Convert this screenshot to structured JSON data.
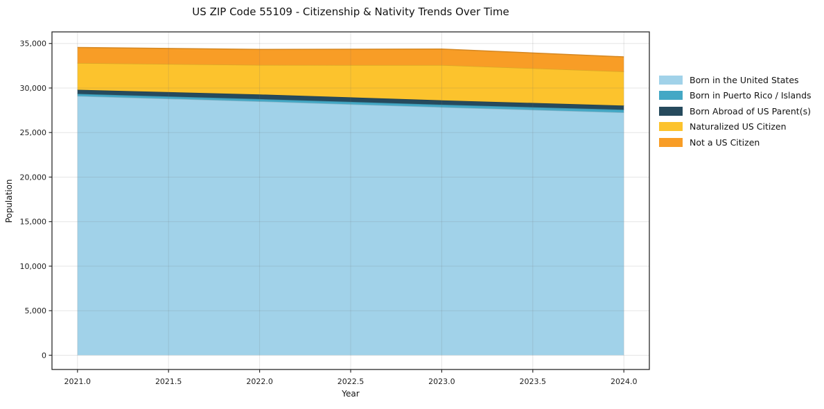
{
  "title": "US ZIP Code 55109 - Citizenship & Nativity Trends Over Time",
  "chart_data": {
    "type": "area",
    "stacked": true,
    "title": "US ZIP Code 55109 - Citizenship & Nativity Trends Over Time",
    "xlabel": "Year",
    "ylabel": "Population",
    "x": [
      2021.0,
      2022.0,
      2023.0,
      2024.0
    ],
    "series": [
      {
        "name": "Born in the United States",
        "color": "#A1D2E9",
        "values": [
          29100,
          28500,
          27850,
          27250
        ]
      },
      {
        "name": "Born in Puerto Rico / Islands",
        "color": "#44A8C5",
        "values": [
          240,
          260,
          280,
          310
        ]
      },
      {
        "name": "Born Abroad of US Parent(s)",
        "color": "#264A5D",
        "values": [
          460,
          520,
          490,
          470
        ]
      },
      {
        "name": "Naturalized US Citizen",
        "color": "#FCC32D",
        "values": [
          3000,
          3300,
          3950,
          3820
        ]
      },
      {
        "name": "Not a US Citizen",
        "color": "#F89D26",
        "values": [
          1750,
          1760,
          1800,
          1650
        ]
      }
    ],
    "xlim": [
      2020.86,
      2024.14
    ],
    "ylim": [
      -1600,
      36300
    ],
    "xticks": {
      "values": [
        2021.0,
        2021.5,
        2022.0,
        2022.5,
        2023.0,
        2023.5,
        2024.0
      ],
      "labels": [
        "2021.0",
        "2021.5",
        "2022.0",
        "2022.5",
        "2023.0",
        "2023.5",
        "2024.0"
      ]
    },
    "yticks": {
      "values": [
        0,
        5000,
        10000,
        15000,
        20000,
        25000,
        30000,
        35000
      ],
      "labels": [
        "0",
        "5,000",
        "10,000",
        "15,000",
        "20,000",
        "25,000",
        "30,000",
        "35,000"
      ]
    },
    "grid": true,
    "legend_position": "right-outside",
    "spine_color": "#2a2a2a",
    "text_color": "#1c1c1c",
    "grid_color": "#6e6e6e"
  }
}
